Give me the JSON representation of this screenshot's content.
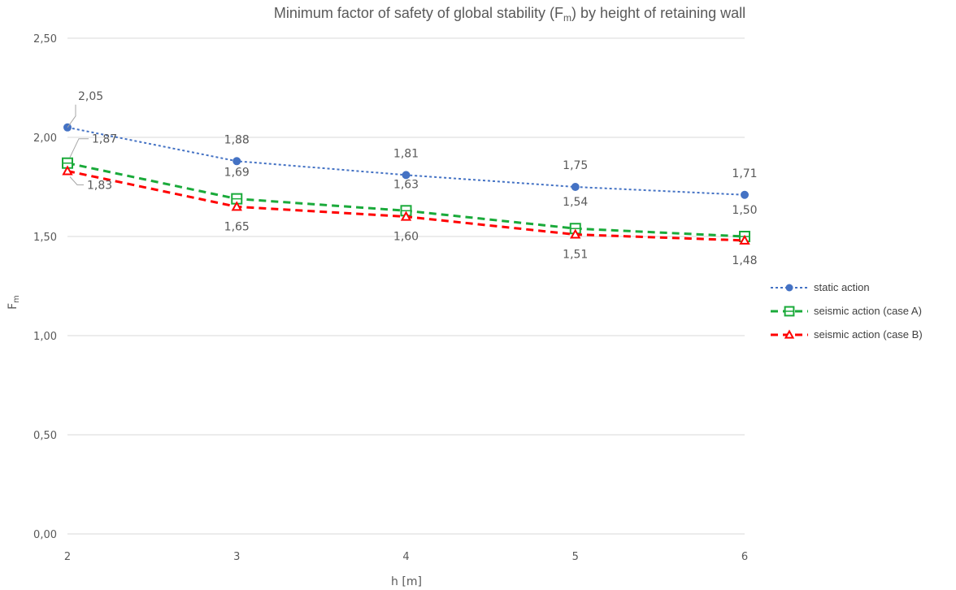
{
  "chart_data": {
    "type": "line",
    "title": "Minimum factor of safety of global stability (F",
    "title_sub": "m",
    "title_tail": ") by height of retaining wall",
    "xlabel": "h [m]",
    "ylabel": "F",
    "ylabel_sub": "m",
    "x": [
      2,
      3,
      4,
      5,
      6
    ],
    "ylim": [
      0,
      2.5
    ],
    "yticks": [
      "0,00",
      "0,50",
      "1,00",
      "1,50",
      "2,00",
      "2,50"
    ],
    "grid": true,
    "legend_position": "right",
    "series": [
      {
        "name": "static action",
        "values": [
          2.05,
          1.88,
          1.81,
          1.75,
          1.71
        ],
        "labels": [
          "2,05",
          "1,88",
          "1,81",
          "1,75",
          "1,71"
        ],
        "color": "#4472c4",
        "marker": "circle",
        "style": "dotted"
      },
      {
        "name": "seismic action (case A)",
        "values": [
          1.87,
          1.69,
          1.63,
          1.54,
          1.5
        ],
        "labels": [
          "1,87",
          "1,69",
          "1,63",
          "1,54",
          "1,50"
        ],
        "color": "#1aaa3a",
        "marker": "square",
        "style": "dashed"
      },
      {
        "name": "seismic action (case B)",
        "values": [
          1.83,
          1.65,
          1.6,
          1.51,
          1.48
        ],
        "labels": [
          "1,83",
          "1,65",
          "1,60",
          "1,51",
          "1,48"
        ],
        "color": "#ff0000",
        "marker": "triangle",
        "style": "dashed"
      }
    ]
  }
}
